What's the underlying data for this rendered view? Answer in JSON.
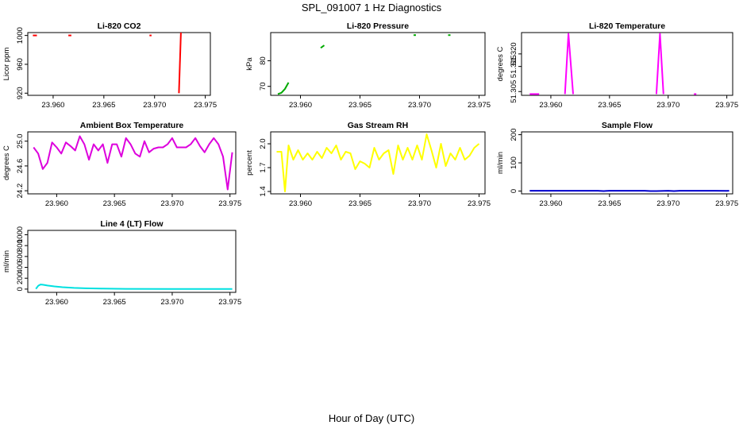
{
  "figure": {
    "title": "SPL_091007  1 Hz Diagnostics",
    "xlabel": "Hour of Day (UTC)"
  },
  "chart_data": [
    {
      "type": "line",
      "title": "Li-820 CO2",
      "xlabel": "",
      "ylabel": "Licor ppm",
      "color": "#ff0000",
      "xlim": [
        23.9575,
        23.9755
      ],
      "ylim": [
        917,
        1004
      ],
      "xticks": [
        "23.960",
        "23.965",
        "23.970",
        "23.975"
      ],
      "xtick_values": [
        23.96,
        23.965,
        23.97,
        23.975
      ],
      "yticks": [
        "920",
        "960",
        "1000"
      ],
      "ytick_values": [
        920,
        960,
        1000
      ],
      "series": [
        {
          "name": "seg1",
          "x": [
            23.958,
            23.9584
          ],
          "y": [
            1000,
            1000
          ]
        },
        {
          "name": "seg2",
          "x": [
            23.9615,
            23.9618
          ],
          "y": [
            1000,
            1000
          ]
        },
        {
          "name": "seg3",
          "x": [
            23.9695,
            23.9697
          ],
          "y": [
            1000,
            1000
          ]
        },
        {
          "name": "seg4",
          "x": [
            23.9724,
            23.9726
          ],
          "y": [
            920,
            1004
          ]
        }
      ]
    },
    {
      "type": "line",
      "title": "Li-820 Pressure",
      "xlabel": "",
      "ylabel": "kPa",
      "color": "#00aa00",
      "xlim": [
        23.9575,
        23.9755
      ],
      "ylim": [
        66.5,
        91
      ],
      "xticks": [
        "23.960",
        "23.965",
        "23.970",
        "23.975"
      ],
      "xtick_values": [
        23.96,
        23.965,
        23.97,
        23.975
      ],
      "yticks": [
        "70",
        "80"
      ],
      "ytick_values": [
        70,
        80
      ],
      "series": [
        {
          "name": "seg1",
          "x": [
            23.9581,
            23.9584,
            23.9587,
            23.959
          ],
          "y": [
            67.0,
            67.5,
            69.0,
            71.5
          ]
        },
        {
          "name": "seg2",
          "x": [
            23.9617,
            23.962
          ],
          "y": [
            85.0,
            86.0
          ]
        },
        {
          "name": "seg3",
          "x": [
            23.9695,
            23.9697
          ],
          "y": [
            90.0,
            90.0
          ]
        },
        {
          "name": "seg4",
          "x": [
            23.9724,
            23.9726
          ],
          "y": [
            90.0,
            90.0
          ]
        }
      ]
    },
    {
      "type": "line",
      "title": "Li-820 Temperature",
      "xlabel": "",
      "ylabel": "degrees C",
      "color": "#ff00ff",
      "xlim": [
        23.9575,
        23.9755
      ],
      "ylim": [
        51.3035,
        51.3285
      ],
      "xticks": [
        "23.960",
        "23.965",
        "23.970",
        "23.975"
      ],
      "xtick_values": [
        23.96,
        23.965,
        23.97,
        23.975
      ],
      "yticks": [
        "51.305",
        "51.315",
        "51.320"
      ],
      "ytick_values": [
        51.305,
        51.315,
        51.32
      ],
      "series": [
        {
          "name": "seg1",
          "x": [
            23.9582,
            23.959
          ],
          "y": [
            51.304,
            51.304
          ]
        },
        {
          "name": "seg2",
          "x": [
            23.9612,
            23.9615,
            23.9619
          ],
          "y": [
            51.304,
            51.328,
            51.304
          ]
        },
        {
          "name": "seg3",
          "x": [
            23.969,
            23.9693,
            23.9696
          ],
          "y": [
            51.304,
            51.328,
            51.304
          ]
        },
        {
          "name": "seg4",
          "x": [
            23.9722,
            23.9724
          ],
          "y": [
            51.304,
            51.304
          ]
        }
      ]
    },
    {
      "type": "line",
      "title": "Ambient Box Temperature",
      "xlabel": "",
      "ylabel": "degrees C",
      "color": "#dd00dd",
      "xlim": [
        23.9575,
        23.9755
      ],
      "ylim": [
        24.15,
        25.15
      ],
      "xticks": [
        "23.960",
        "23.965",
        "23.970",
        "23.975"
      ],
      "xtick_values": [
        23.96,
        23.965,
        23.97,
        23.975
      ],
      "yticks": [
        "24.2",
        "24.6",
        "25.0"
      ],
      "ytick_values": [
        24.2,
        24.6,
        25.0
      ],
      "series": [
        {
          "name": "box_temp",
          "x": [
            23.958,
            23.9584,
            23.9588,
            23.9592,
            23.9596,
            23.96,
            23.9604,
            23.9608,
            23.9612,
            23.9616,
            23.962,
            23.9624,
            23.9628,
            23.9632,
            23.9636,
            23.964,
            23.9644,
            23.9648,
            23.9652,
            23.9656,
            23.966,
            23.9664,
            23.9668,
            23.9672,
            23.9676,
            23.968,
            23.9684,
            23.9688,
            23.9692,
            23.9696,
            23.97,
            23.9704,
            23.9708,
            23.9712,
            23.9716,
            23.972,
            23.9724,
            23.9728,
            23.9732,
            23.9736,
            23.974,
            23.9744,
            23.9748,
            23.9752
          ],
          "y": [
            24.9,
            24.8,
            24.55,
            24.65,
            24.98,
            24.9,
            24.8,
            24.98,
            24.92,
            24.85,
            25.08,
            24.95,
            24.7,
            24.95,
            24.85,
            24.95,
            24.65,
            24.95,
            24.95,
            24.75,
            25.05,
            24.95,
            24.8,
            24.75,
            25.0,
            24.82,
            24.88,
            24.9,
            24.9,
            24.95,
            25.05,
            24.9,
            24.9,
            24.9,
            24.95,
            25.05,
            24.92,
            24.82,
            24.95,
            25.05,
            24.95,
            24.75,
            24.22,
            24.82
          ]
        }
      ]
    },
    {
      "type": "line",
      "title": "Gas Stream RH",
      "xlabel": "",
      "ylabel": "percent",
      "color": "#ffff00",
      "xlim": [
        23.9575,
        23.9755
      ],
      "ylim": [
        1.37,
        2.15
      ],
      "xticks": [
        "23.960",
        "23.965",
        "23.970",
        "23.975"
      ],
      "xtick_values": [
        23.96,
        23.965,
        23.97,
        23.975
      ],
      "yticks": [
        "1.4",
        "1.7",
        "2.0"
      ],
      "ytick_values": [
        1.4,
        1.7,
        2.0
      ],
      "series": [
        {
          "name": "rh",
          "x": [
            23.958,
            23.9584,
            23.9587,
            23.959,
            23.9594,
            23.9598,
            23.9602,
            23.9606,
            23.961,
            23.9614,
            23.9618,
            23.9622,
            23.9626,
            23.963,
            23.9634,
            23.9638,
            23.9642,
            23.9646,
            23.965,
            23.9654,
            23.9658,
            23.9662,
            23.9666,
            23.967,
            23.9674,
            23.9678,
            23.9682,
            23.9686,
            23.969,
            23.9694,
            23.9698,
            23.9702,
            23.9706,
            23.971,
            23.9714,
            23.9718,
            23.9722,
            23.9726,
            23.973,
            23.9734,
            23.9738,
            23.9742,
            23.9746,
            23.975
          ],
          "y": [
            1.9,
            1.9,
            1.4,
            1.98,
            1.8,
            1.92,
            1.8,
            1.88,
            1.8,
            1.9,
            1.82,
            1.95,
            1.88,
            1.98,
            1.8,
            1.9,
            1.88,
            1.68,
            1.78,
            1.75,
            1.7,
            1.95,
            1.8,
            1.88,
            1.92,
            1.62,
            1.98,
            1.8,
            1.95,
            1.8,
            1.98,
            1.8,
            2.12,
            1.92,
            1.7,
            2.0,
            1.72,
            1.88,
            1.8,
            1.95,
            1.8,
            1.85,
            1.95,
            2.0
          ]
        }
      ]
    },
    {
      "type": "line",
      "title": "Sample Flow",
      "xlabel": "",
      "ylabel": "ml/min",
      "color": "#0000cc",
      "xlim": [
        23.9575,
        23.9755
      ],
      "ylim": [
        -10,
        210
      ],
      "xticks": [
        "23.960",
        "23.965",
        "23.970",
        "23.975"
      ],
      "xtick_values": [
        23.96,
        23.965,
        23.97,
        23.975
      ],
      "yticks": [
        "0",
        "100",
        "200"
      ],
      "ytick_values": [
        0,
        100,
        200
      ],
      "series": [
        {
          "name": "flow",
          "x": [
            23.9582,
            23.962,
            23.964,
            23.9645,
            23.965,
            23.968,
            23.9685,
            23.969,
            23.97,
            23.9705,
            23.971,
            23.974,
            23.975,
            23.9752
          ],
          "y": [
            1,
            1,
            1,
            0,
            1,
            1,
            0,
            0,
            1,
            0,
            1,
            1,
            0.5,
            1
          ]
        }
      ]
    },
    {
      "type": "line",
      "title": "Line 4 (LT) Flow",
      "xlabel": "",
      "ylabel": "ml/min",
      "color": "#00e0e0",
      "xlim": [
        23.9575,
        23.9755
      ],
      "ylim": [
        -60,
        1080
      ],
      "xticks": [
        "23.960",
        "23.965",
        "23.970",
        "23.975"
      ],
      "xtick_values": [
        23.96,
        23.965,
        23.97,
        23.975
      ],
      "yticks": [
        "0",
        "200",
        "400",
        "600",
        "800",
        "1000"
      ],
      "ytick_values": [
        0,
        200,
        400,
        600,
        800,
        1000
      ],
      "series": [
        {
          "name": "lt_flow",
          "x": [
            23.9582,
            23.9584,
            23.9586,
            23.9588,
            23.9592,
            23.9598,
            23.9605,
            23.9615,
            23.9625,
            23.964,
            23.966,
            23.97,
            23.9752
          ],
          "y": [
            5,
            60,
            85,
            80,
            65,
            50,
            35,
            22,
            14,
            8,
            5,
            3,
            2
          ]
        }
      ]
    }
  ]
}
